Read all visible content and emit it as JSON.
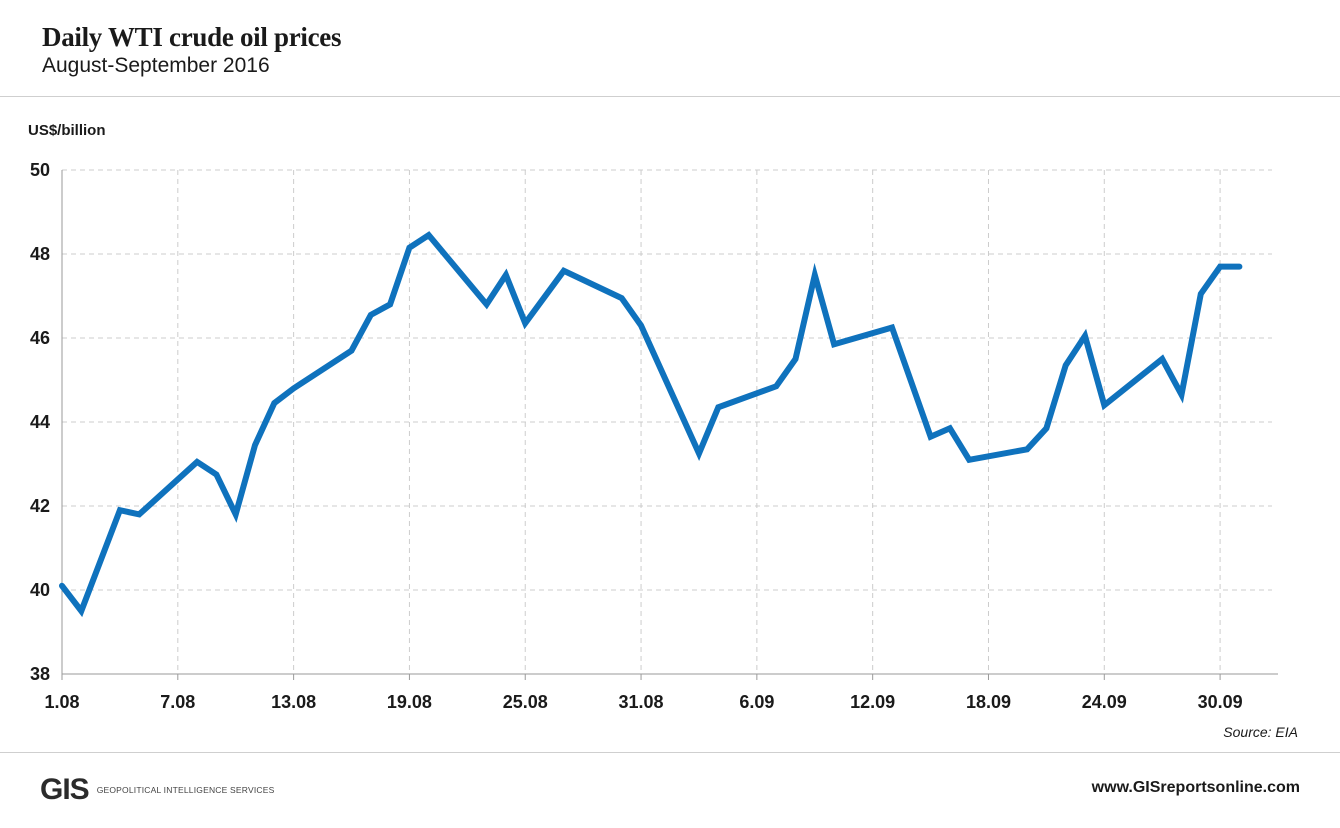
{
  "header": {
    "title": "Daily WTI crude oil prices",
    "subtitle": "August-September 2016"
  },
  "footer": {
    "source": "Source: EIA",
    "logo_mark": "GIS",
    "logo_text": "Geopolitical Intelligence Services",
    "website": "www.GISreportsonline.com"
  },
  "colors": {
    "line": "#0f72bd",
    "grid": "#cccccc",
    "axis": "#9a9a9a",
    "logo_accent": "#d6202d"
  },
  "chart_data": {
    "type": "line",
    "ylabel": "US$/billion",
    "ylim": [
      38,
      50
    ],
    "yticks": [
      38,
      40,
      42,
      44,
      46,
      48,
      50
    ],
    "x_tick_labels": [
      "1.08",
      "7.08",
      "13.08",
      "19.08",
      "25.08",
      "31.08",
      "6.09",
      "12.09",
      "18.09",
      "24.09",
      "30.09"
    ],
    "x_tick_days": [
      1,
      7,
      13,
      19,
      25,
      31,
      37,
      43,
      49,
      55,
      61
    ],
    "grid": true,
    "series": [
      {
        "x": [
          "1.08",
          "2.08",
          "4.08",
          "5.08",
          "8.08",
          "9.08",
          "10.08",
          "11.08",
          "12.08",
          "13.08",
          "16.08",
          "17.08",
          "18.08",
          "19.08",
          "20.08",
          "23.08",
          "24.08",
          "25.08",
          "27.08",
          "30.08",
          "31.08",
          "3.09",
          "4.09",
          "7.09",
          "8.09",
          "9.09",
          "10.09",
          "13.09",
          "15.09",
          "16.09",
          "17.09",
          "20.09",
          "21.09",
          "22.09",
          "23.09",
          "24.09",
          "27.09",
          "28.09",
          "29.09",
          "30.09",
          "1.10"
        ],
        "values": [
          40.1,
          39.5,
          41.9,
          41.8,
          43.05,
          42.75,
          41.8,
          43.45,
          44.45,
          44.8,
          45.7,
          46.55,
          46.8,
          48.15,
          48.45,
          46.8,
          47.5,
          46.35,
          47.6,
          46.95,
          46.3,
          43.25,
          44.35,
          44.85,
          45.5,
          47.5,
          45.85,
          46.25,
          43.65,
          43.85,
          43.1,
          43.35,
          43.85,
          45.35,
          46.05,
          44.4,
          45.5,
          44.65,
          47.05,
          47.7,
          47.7
        ]
      }
    ]
  }
}
